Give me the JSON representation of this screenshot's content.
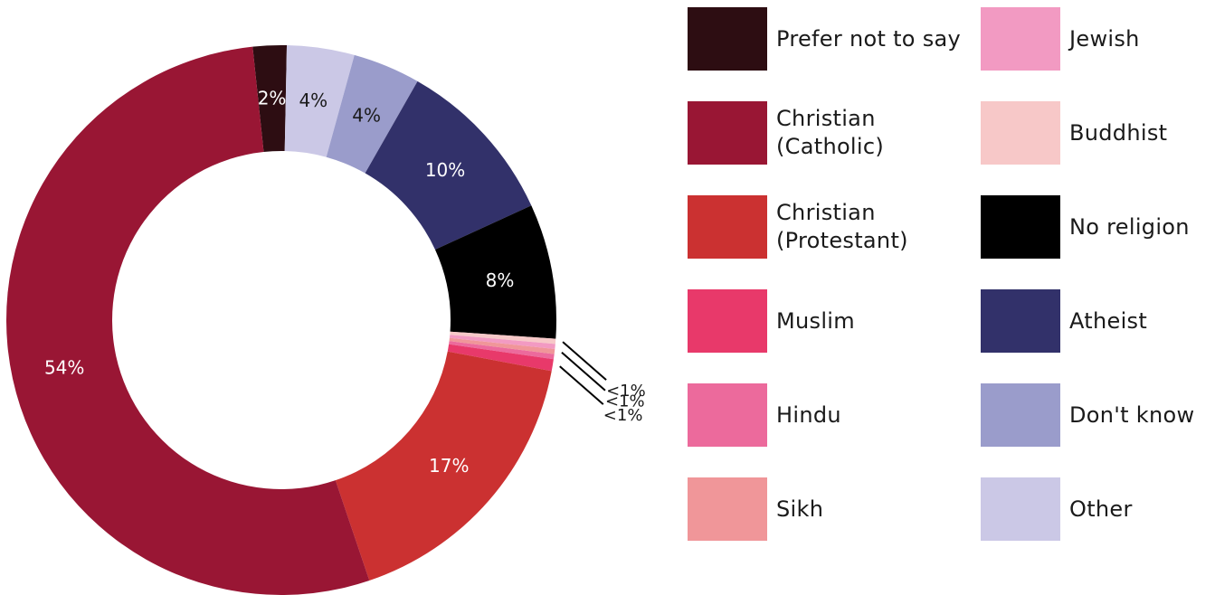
{
  "chart_data": {
    "type": "pie",
    "subtype": "donut",
    "title": "",
    "legend_position": "right",
    "slices": [
      {
        "name": "Prefer not to say",
        "value": 2,
        "label": "2%",
        "color": "#2d0d12",
        "label_color": "#ffffff"
      },
      {
        "name": "Other",
        "value": 4,
        "label": "4%",
        "color": "#cbc8e6",
        "label_color": "#1a1a1a"
      },
      {
        "name": "Don't know",
        "value": 4,
        "label": "4%",
        "color": "#9a9ccb",
        "label_color": "#1a1a1a"
      },
      {
        "name": "Atheist",
        "value": 10,
        "label": "10%",
        "color": "#32316a",
        "label_color": "#ffffff"
      },
      {
        "name": "No religion",
        "value": 8,
        "label": "8%",
        "color": "#000000",
        "label_color": "#ffffff"
      },
      {
        "name": "Buddhist",
        "value": 0.3,
        "label": "<1%",
        "color": "#f7c8c8",
        "label_color": "#1a1a1a"
      },
      {
        "name": "Jewish",
        "value": 0.3,
        "label": "",
        "color": "#f29ac2",
        "label_color": "#1a1a1a"
      },
      {
        "name": "Sikh",
        "value": 0.3,
        "label": "<1%",
        "color": "#f09699",
        "label_color": "#1a1a1a"
      },
      {
        "name": "Hindu",
        "value": 0.3,
        "label": "",
        "color": "#ec6a9c",
        "label_color": "#1a1a1a"
      },
      {
        "name": "Muslim",
        "value": 0.7,
        "label": "<1%",
        "color": "#e8396a",
        "label_color": "#1a1a1a"
      },
      {
        "name": "Christian (Protestant)",
        "value": 17,
        "label": "17%",
        "color": "#cb3131",
        "label_color": "#ffffff"
      },
      {
        "name": "Christian (Catholic)",
        "value": 54,
        "label": "54%",
        "color": "#991634",
        "label_color": "#ffffff"
      }
    ],
    "legend": [
      {
        "label": "Prefer not to say",
        "color": "#2d0d12"
      },
      {
        "label": "Christian\n(Catholic)",
        "color": "#991634"
      },
      {
        "label": "Christian\n(Protestant)",
        "color": "#cb3131"
      },
      {
        "label": "Muslim",
        "color": "#e8396a"
      },
      {
        "label": "Hindu",
        "color": "#ec6a9c"
      },
      {
        "label": "Sikh",
        "color": "#f09699"
      },
      {
        "label": "Jewish",
        "color": "#f29ac2"
      },
      {
        "label": "Buddhist",
        "color": "#f7c8c8"
      },
      {
        "label": "No religion",
        "color": "#000000"
      },
      {
        "label": "Atheist",
        "color": "#32316a"
      },
      {
        "label": "Don't know",
        "color": "#9a9ccb"
      },
      {
        "label": "Other",
        "color": "#cbc8e6"
      }
    ]
  }
}
